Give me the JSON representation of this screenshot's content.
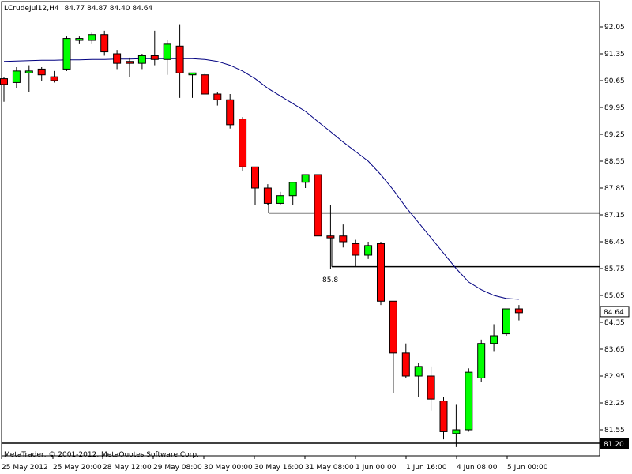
{
  "chart_header": {
    "symbol_timeframe": "LCrudeJul12,H4",
    "ohlc": "84.77 84.87 84.40 84.64"
  },
  "footer": {
    "copyright": "MetaTrader, © 2001-2012, MetaQuotes Software Corp."
  },
  "annotation": {
    "label": "85.8"
  },
  "price_markers": {
    "current": "84.64",
    "bottom_line": "81.20"
  },
  "colors": {
    "bull": "#00ff00",
    "bear": "#ff0000",
    "ma": "#000080",
    "outline": "#000000",
    "background": "#ffffff"
  },
  "chart_data": {
    "type": "candlestick",
    "ylim": [
      81.0,
      92.5
    ],
    "y_ticks": [
      "92.05",
      "91.35",
      "90.65",
      "89.95",
      "89.25",
      "88.55",
      "87.85",
      "87.15",
      "86.45",
      "85.75",
      "85.05",
      "84.35",
      "83.65",
      "82.95",
      "82.25",
      "81.55"
    ],
    "x_tick_labels": [
      "25 May 2012",
      "25 May 20:00",
      "28 May 12:00",
      "29 May 08:00",
      "30 May 00:00",
      "30 May 16:00",
      "31 May 08:00",
      "1 Jun 00:00",
      "1 Jun 16:00",
      "4 Jun 08:00",
      "5 Jun 00:00"
    ],
    "candles": [
      {
        "o": 90.7,
        "h": 90.75,
        "l": 90.1,
        "c": 90.55
      },
      {
        "o": 90.6,
        "h": 91.0,
        "l": 90.45,
        "c": 90.9
      },
      {
        "o": 90.85,
        "h": 91.05,
        "l": 90.35,
        "c": 90.9
      },
      {
        "o": 90.95,
        "h": 91.0,
        "l": 90.65,
        "c": 90.8
      },
      {
        "o": 90.75,
        "h": 90.9,
        "l": 90.6,
        "c": 90.65
      },
      {
        "o": 90.95,
        "h": 91.8,
        "l": 90.9,
        "c": 91.75
      },
      {
        "o": 91.7,
        "h": 91.8,
        "l": 91.6,
        "c": 91.75
      },
      {
        "o": 91.7,
        "h": 91.9,
        "l": 91.6,
        "c": 91.85
      },
      {
        "o": 91.85,
        "h": 91.95,
        "l": 91.3,
        "c": 91.4
      },
      {
        "o": 91.35,
        "h": 91.45,
        "l": 90.95,
        "c": 91.1
      },
      {
        "o": 91.15,
        "h": 91.25,
        "l": 90.75,
        "c": 91.1
      },
      {
        "o": 91.1,
        "h": 91.35,
        "l": 90.95,
        "c": 91.3
      },
      {
        "o": 91.3,
        "h": 91.95,
        "l": 91.05,
        "c": 91.2
      },
      {
        "o": 91.2,
        "h": 91.7,
        "l": 90.8,
        "c": 91.6
      },
      {
        "o": 91.55,
        "h": 92.1,
        "l": 90.2,
        "c": 90.85
      },
      {
        "o": 90.8,
        "h": 90.85,
        "l": 90.2,
        "c": 90.85
      },
      {
        "o": 90.8,
        "h": 90.85,
        "l": 90.3,
        "c": 90.3
      },
      {
        "o": 90.3,
        "h": 90.35,
        "l": 90.0,
        "c": 90.15
      },
      {
        "o": 90.15,
        "h": 90.3,
        "l": 89.4,
        "c": 89.5
      },
      {
        "o": 89.65,
        "h": 89.7,
        "l": 88.3,
        "c": 88.4
      },
      {
        "o": 88.4,
        "h": 88.4,
        "l": 87.4,
        "c": 87.85
      },
      {
        "o": 87.85,
        "h": 87.95,
        "l": 87.4,
        "c": 87.45
      },
      {
        "o": 87.45,
        "h": 87.75,
        "l": 87.4,
        "c": 87.65
      },
      {
        "o": 87.65,
        "h": 88.0,
        "l": 87.4,
        "c": 88.0
      },
      {
        "o": 88.0,
        "h": 88.2,
        "l": 87.85,
        "c": 88.2
      },
      {
        "o": 88.2,
        "h": 88.2,
        "l": 86.5,
        "c": 86.6
      },
      {
        "o": 86.6,
        "h": 87.4,
        "l": 85.75,
        "c": 86.55
      },
      {
        "o": 86.6,
        "h": 86.9,
        "l": 86.3,
        "c": 86.45
      },
      {
        "o": 86.4,
        "h": 86.5,
        "l": 85.8,
        "c": 86.1
      },
      {
        "o": 86.1,
        "h": 86.45,
        "l": 86.0,
        "c": 86.35
      },
      {
        "o": 86.4,
        "h": 86.45,
        "l": 84.8,
        "c": 84.9
      },
      {
        "o": 84.9,
        "h": 84.9,
        "l": 82.5,
        "c": 83.55
      },
      {
        "o": 83.55,
        "h": 83.8,
        "l": 82.9,
        "c": 82.95
      },
      {
        "o": 82.95,
        "h": 83.3,
        "l": 82.4,
        "c": 83.2
      },
      {
        "o": 82.95,
        "h": 83.2,
        "l": 82.05,
        "c": 82.35
      },
      {
        "o": 82.3,
        "h": 82.4,
        "l": 81.3,
        "c": 81.5
      },
      {
        "o": 81.45,
        "h": 82.2,
        "l": 81.1,
        "c": 81.55
      },
      {
        "o": 81.55,
        "h": 83.15,
        "l": 81.5,
        "c": 83.05
      },
      {
        "o": 82.9,
        "h": 83.9,
        "l": 82.8,
        "c": 83.8
      },
      {
        "o": 83.8,
        "h": 84.3,
        "l": 83.6,
        "c": 84.0
      },
      {
        "o": 84.05,
        "h": 84.7,
        "l": 84.0,
        "c": 84.7
      },
      {
        "o": 84.7,
        "h": 84.8,
        "l": 84.4,
        "c": 84.6
      }
    ],
    "moving_average": [
      91.15,
      91.16,
      91.17,
      91.18,
      91.18,
      91.19,
      91.19,
      91.2,
      91.2,
      91.21,
      91.21,
      91.22,
      91.22,
      91.22,
      91.22,
      91.22,
      91.2,
      91.15,
      91.05,
      90.9,
      90.7,
      90.45,
      90.25,
      90.05,
      89.85,
      89.58,
      89.32,
      89.05,
      88.8,
      88.55,
      88.2,
      87.8,
      87.35,
      86.95,
      86.55,
      86.15,
      85.75,
      85.4,
      85.2,
      85.05,
      84.97,
      84.95
    ],
    "horizontal_levels": [
      87.2,
      85.8,
      81.2
    ]
  }
}
